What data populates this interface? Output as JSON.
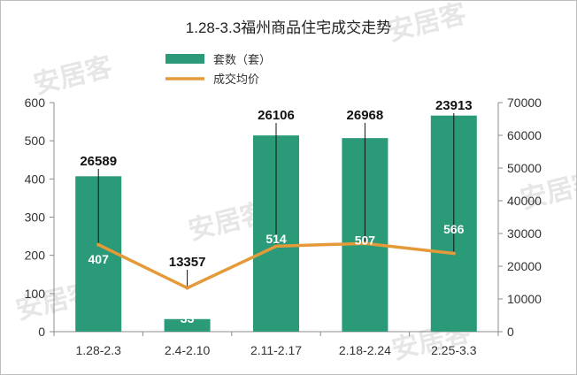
{
  "chart_data": {
    "type": "bar",
    "title": "1.28-3.3福州商品住宅成交走势",
    "categories": [
      "1.28-2.3",
      "2.4-2.10",
      "2.11-2.17",
      "2.18-2.24",
      "2.25-3.3"
    ],
    "series": [
      {
        "name": "套数（套）",
        "type": "bar",
        "axis": "left",
        "color": "#2a9a78",
        "values": [
          407,
          33,
          514,
          507,
          566
        ]
      },
      {
        "name": "成交均价",
        "type": "line",
        "axis": "right",
        "color": "#e59a3a",
        "values": [
          26589,
          13357,
          26106,
          26968,
          23913
        ]
      }
    ],
    "y_left": {
      "min": 0,
      "max": 600,
      "ticks": [
        0,
        100,
        200,
        300,
        400,
        500,
        600
      ]
    },
    "y_right": {
      "min": 0,
      "max": 70000,
      "ticks": [
        0,
        10000,
        20000,
        30000,
        40000,
        50000,
        60000,
        70000
      ]
    },
    "legend_position": "top-left",
    "grid": false
  },
  "watermark": "安居客"
}
